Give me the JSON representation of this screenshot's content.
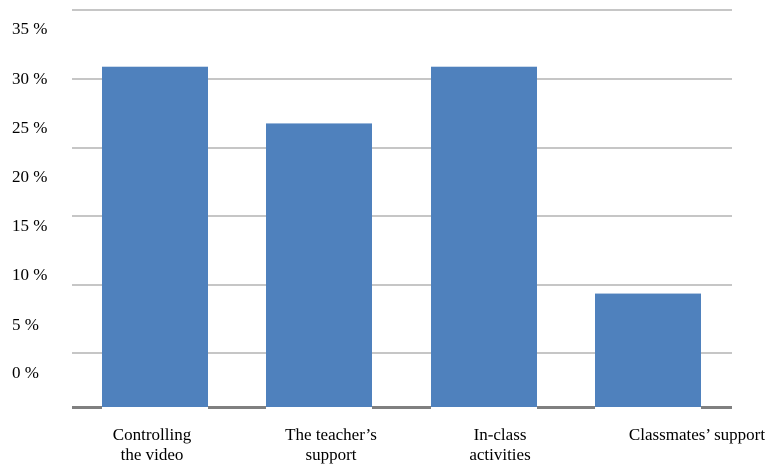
{
  "chart_data": {
    "type": "bar",
    "categories": [
      [
        "Controlling",
        "the video"
      ],
      [
        "The    teacher’s",
        "support"
      ],
      [
        "In-class",
        "activities"
      ],
      [
        "Classmates’ support"
      ]
    ],
    "values": [
      30,
      25,
      30,
      10
    ],
    "title": "",
    "xlabel": "",
    "ylabel": "",
    "ylim": [
      0,
      35
    ],
    "y_ticks": [
      "0 %",
      "5 %",
      "10 %",
      "15 %",
      "20 %",
      "25 %",
      "30 %",
      "35 %"
    ],
    "grid": true,
    "legend": "none",
    "bar_color": "#4f81bd",
    "grid_color": "#8c8c8c",
    "axis_color": "#808080"
  }
}
